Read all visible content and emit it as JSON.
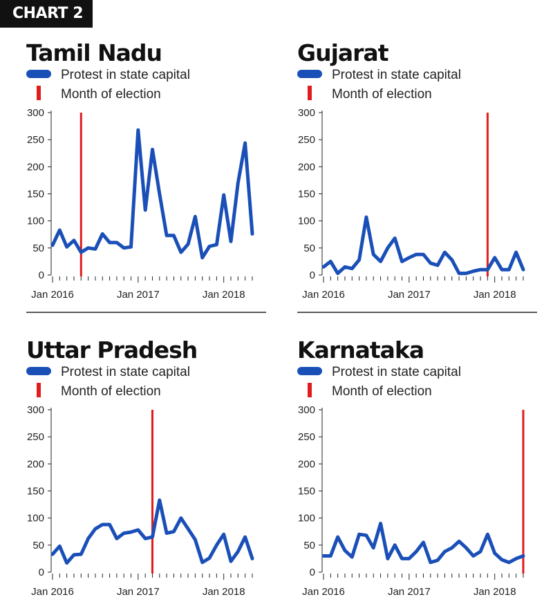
{
  "header": {
    "label": "CHART 2"
  },
  "colors": {
    "series": "#1a4fb8",
    "election": "#e01c1c",
    "axis": "#222222"
  },
  "chart_data": [
    {
      "type": "line",
      "title": "Tamil Nadu",
      "legend": {
        "series_label": "Protest in state capital",
        "election_label": "Month of election"
      },
      "x_tick_labels": [
        "Jan 2016",
        "Jan 2017",
        "Jan 2018"
      ],
      "y_ticks": [
        0,
        50,
        100,
        150,
        200,
        250,
        300
      ],
      "ylim": [
        0,
        300
      ],
      "election_month_index": 4,
      "series": [
        {
          "name": "Protest in state capital",
          "values": [
            55,
            83,
            52,
            64,
            42,
            50,
            48,
            76,
            60,
            60,
            50,
            52,
            268,
            120,
            232,
            150,
            73,
            73,
            42,
            57,
            108,
            32,
            53,
            56,
            148,
            62,
            170,
            244,
            76
          ]
        }
      ]
    },
    {
      "type": "line",
      "title": "Gujarat",
      "legend": {
        "series_label": "Protest in state capital",
        "election_label": "Month of election"
      },
      "x_tick_labels": [
        "Jan 2016",
        "Jan 2017",
        "Jan 2018"
      ],
      "y_ticks": [
        0,
        50,
        100,
        150,
        200,
        250,
        300
      ],
      "ylim": [
        0,
        300
      ],
      "election_month_index": 23,
      "series": [
        {
          "name": "Protest in state capital",
          "values": [
            15,
            25,
            3,
            15,
            12,
            28,
            107,
            38,
            25,
            50,
            68,
            25,
            32,
            38,
            38,
            22,
            18,
            42,
            28,
            3,
            3,
            7,
            10,
            10,
            32,
            10,
            10,
            42,
            10
          ]
        }
      ]
    },
    {
      "type": "line",
      "title": "Uttar Pradesh",
      "legend": {
        "series_label": "Protest in state capital",
        "election_label": "Month of election"
      },
      "x_tick_labels": [
        "Jan 2016",
        "Jan 2017",
        "Jan 2018"
      ],
      "y_ticks": [
        0,
        50,
        100,
        150,
        200,
        250,
        300
      ],
      "ylim": [
        0,
        300
      ],
      "election_month_index": 14,
      "series": [
        {
          "name": "Protest in state capital",
          "values": [
            33,
            48,
            17,
            32,
            33,
            62,
            80,
            88,
            88,
            62,
            72,
            74,
            78,
            62,
            65,
            133,
            72,
            75,
            100,
            80,
            60,
            18,
            26,
            50,
            70,
            20,
            38,
            65,
            25
          ]
        }
      ]
    },
    {
      "type": "line",
      "title": "Karnataka",
      "legend": {
        "series_label": "Protest in state capital",
        "election_label": "Month of election"
      },
      "x_tick_labels": [
        "Jan 2016",
        "Jan 2017",
        "Jan 2018"
      ],
      "y_ticks": [
        0,
        50,
        100,
        150,
        200,
        250,
        300
      ],
      "ylim": [
        0,
        300
      ],
      "election_month_index": 28,
      "series": [
        {
          "name": "Protest in state capital",
          "values": [
            30,
            30,
            65,
            40,
            28,
            70,
            68,
            45,
            90,
            25,
            50,
            25,
            25,
            38,
            55,
            18,
            22,
            38,
            45,
            57,
            45,
            30,
            38,
            70,
            35,
            23,
            18,
            25,
            30
          ]
        }
      ]
    }
  ]
}
